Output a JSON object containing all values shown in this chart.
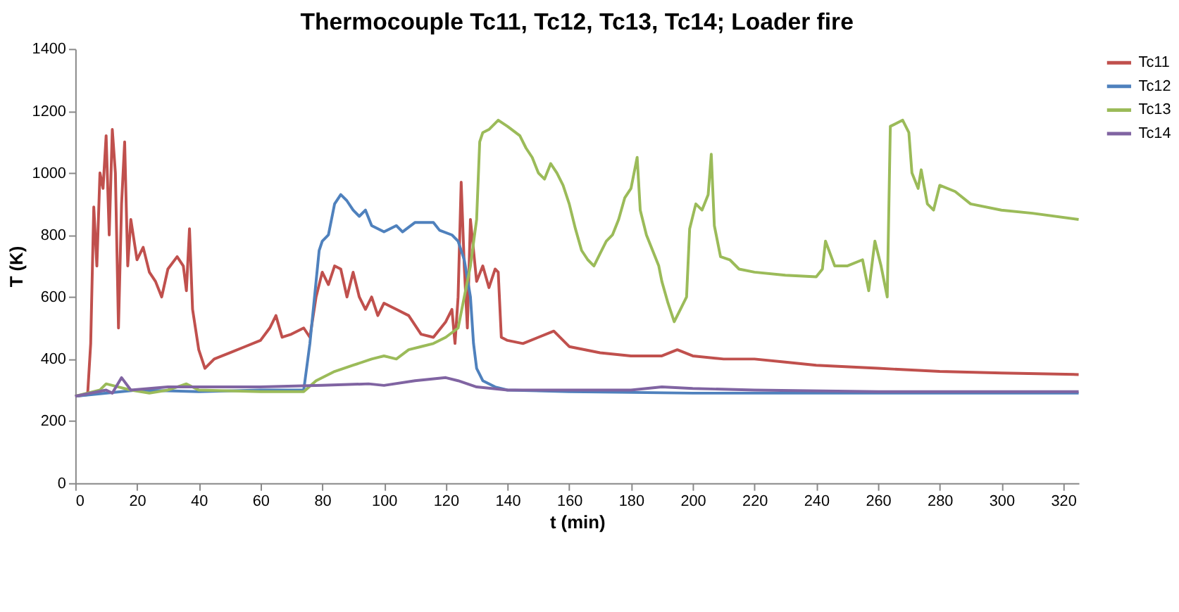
{
  "chart_data": {
    "type": "line",
    "title": "Thermocouple Tc11, Tc12, Tc13, Tc14; Loader fire",
    "xlabel": "t (min)",
    "ylabel": "T (K)",
    "xlim": [
      0,
      325
    ],
    "xticks": [
      0,
      20,
      40,
      60,
      80,
      100,
      120,
      140,
      160,
      180,
      200,
      220,
      240,
      260,
      280,
      300,
      320
    ],
    "ylim": [
      0,
      1400
    ],
    "yticks": [
      0,
      200,
      400,
      600,
      800,
      1000,
      1200,
      1400
    ],
    "grid": false,
    "legend": "right",
    "marker": "none",
    "line_style": "solid",
    "series": [
      {
        "name": "Tc11",
        "color": "#c0504d",
        "x": [
          0,
          4,
          5,
          6,
          7,
          8,
          9,
          10,
          11,
          12,
          13,
          14,
          15,
          16,
          17,
          18,
          20,
          22,
          24,
          26,
          28,
          30,
          33,
          35,
          36,
          37,
          38,
          40,
          42,
          45,
          50,
          55,
          60,
          63,
          65,
          67,
          70,
          74,
          76,
          78,
          80,
          82,
          84,
          86,
          88,
          90,
          92,
          94,
          96,
          98,
          100,
          104,
          108,
          112,
          116,
          120,
          122,
          123,
          124,
          125,
          126,
          127,
          128,
          130,
          132,
          134,
          136,
          137,
          138,
          140,
          145,
          150,
          155,
          160,
          170,
          180,
          190,
          195,
          200,
          210,
          220,
          230,
          240,
          260,
          280,
          300,
          325
        ],
        "values": [
          280,
          285,
          450,
          890,
          700,
          1000,
          950,
          1120,
          800,
          1140,
          1000,
          500,
          900,
          1100,
          700,
          850,
          720,
          760,
          680,
          650,
          600,
          690,
          730,
          700,
          620,
          820,
          560,
          430,
          370,
          400,
          420,
          440,
          460,
          500,
          540,
          470,
          480,
          500,
          470,
          600,
          680,
          640,
          700,
          690,
          600,
          680,
          600,
          560,
          600,
          540,
          580,
          560,
          540,
          480,
          470,
          520,
          560,
          450,
          600,
          970,
          700,
          500,
          850,
          650,
          700,
          630,
          690,
          680,
          470,
          460,
          450,
          470,
          490,
          440,
          420,
          410,
          410,
          430,
          410,
          400,
          400,
          390,
          380,
          370,
          360,
          355,
          350
        ]
      },
      {
        "name": "Tc12",
        "color": "#4f81bd",
        "x": [
          0,
          20,
          40,
          60,
          74,
          76,
          78,
          79,
          80,
          82,
          84,
          86,
          88,
          90,
          92,
          94,
          96,
          100,
          104,
          106,
          110,
          116,
          118,
          122,
          124,
          126,
          128,
          129,
          130,
          132,
          136,
          140,
          160,
          200,
          260,
          325
        ],
        "values": [
          280,
          300,
          295,
          300,
          300,
          450,
          650,
          750,
          780,
          800,
          900,
          930,
          910,
          880,
          860,
          880,
          830,
          810,
          830,
          810,
          840,
          840,
          815,
          800,
          780,
          720,
          600,
          450,
          370,
          330,
          310,
          300,
          295,
          290,
          290,
          290
        ]
      },
      {
        "name": "Tc13",
        "color": "#9bbb59",
        "x": [
          0,
          8,
          10,
          14,
          18,
          24,
          30,
          36,
          40,
          60,
          74,
          78,
          84,
          90,
          96,
          100,
          104,
          108,
          112,
          116,
          120,
          124,
          126,
          128,
          130,
          131,
          132,
          134,
          137,
          140,
          144,
          146,
          148,
          150,
          152,
          154,
          156,
          158,
          160,
          162,
          164,
          166,
          168,
          170,
          172,
          174,
          176,
          178,
          180,
          182,
          183,
          185,
          187,
          189,
          190,
          192,
          194,
          196,
          198,
          199,
          201,
          203,
          205,
          206,
          207,
          209,
          212,
          215,
          220,
          230,
          240,
          242,
          243,
          246,
          250,
          255,
          257,
          259,
          261,
          263,
          264,
          268,
          270,
          271,
          273,
          274,
          276,
          278,
          280,
          285,
          290,
          300,
          310,
          325
        ],
        "values": [
          280,
          300,
          320,
          310,
          300,
          290,
          300,
          320,
          300,
          295,
          295,
          330,
          360,
          380,
          400,
          410,
          400,
          430,
          440,
          450,
          470,
          500,
          600,
          700,
          850,
          1100,
          1130,
          1140,
          1170,
          1150,
          1120,
          1080,
          1050,
          1000,
          980,
          1030,
          1000,
          960,
          900,
          820,
          750,
          720,
          700,
          740,
          780,
          800,
          850,
          920,
          950,
          1050,
          880,
          800,
          750,
          700,
          650,
          580,
          520,
          560,
          600,
          820,
          900,
          880,
          930,
          1060,
          830,
          730,
          720,
          690,
          680,
          670,
          665,
          690,
          780,
          700,
          700,
          720,
          620,
          780,
          700,
          600,
          1150,
          1170,
          1130,
          1000,
          950,
          1010,
          900,
          880,
          960,
          940,
          900,
          880,
          870,
          850
        ]
      },
      {
        "name": "Tc14",
        "color": "#8064a2",
        "x": [
          0,
          10,
          12,
          15,
          18,
          30,
          60,
          80,
          95,
          100,
          110,
          120,
          124,
          130,
          140,
          180,
          190,
          200,
          220,
          260,
          325
        ],
        "values": [
          280,
          300,
          290,
          340,
          300,
          310,
          310,
          315,
          320,
          315,
          330,
          340,
          330,
          310,
          300,
          300,
          310,
          305,
          300,
          295,
          295
        ]
      }
    ]
  }
}
